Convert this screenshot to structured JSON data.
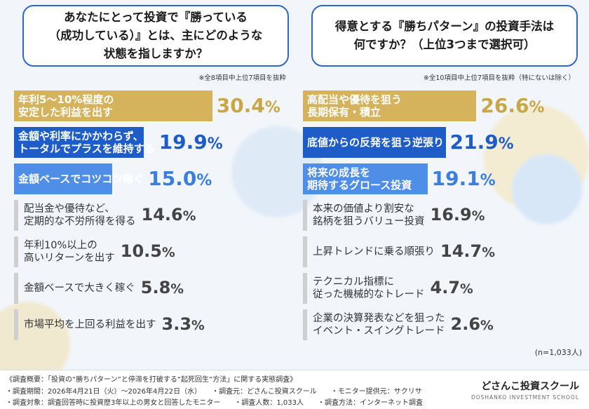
{
  "left": {
    "question": "あなたにとって投資で『勝っている\n（成功している）』とは、主にどのような\n状態を指しますか？",
    "note": "※全8項目中上位7項目を抜粋"
  },
  "right": {
    "question": "得意とする『勝ちパターン』の投資手法は\n何ですか？（上位3つまで選択可）",
    "note": "※全10項目中上位7項目を抜粋（特にないは除く）"
  },
  "chart_data": [
    {
      "type": "bar",
      "orientation": "horizontal",
      "unit": "%",
      "categories": [
        "年利5〜10%程度の\n安定した利益を出す",
        "金額や利率にかかわらず、\nトータルでプラスを維持する",
        "金額ベースでコツコツ稼ぐ",
        "配当金や優待など、\n定期的な不労所得を得る",
        "年利10%以上の\n高いリターンを出す",
        "金額ベースで大きく稼ぐ",
        "市場平均を上回る利益を出す"
      ],
      "values": [
        30.4,
        19.9,
        15.0,
        14.6,
        10.5,
        5.8,
        3.3
      ],
      "value_labels": [
        "30.4",
        "19.9",
        "15.0",
        "14.6",
        "10.5",
        "5.8",
        "3.3"
      ],
      "colors": [
        "#d4b35c",
        "#1e5cc8",
        "#4f8ee6",
        "#cfcfcf",
        "#cfcfcf",
        "#cfcfcf",
        "#cfcfcf"
      ],
      "value_colors": [
        "#c9a648",
        "#1e5cc8",
        "#3a7fe0",
        "#444444",
        "#444444",
        "#444444",
        "#444444"
      ]
    },
    {
      "type": "bar",
      "orientation": "horizontal",
      "unit": "%",
      "categories": [
        "高配当や優待を狙う\n長期保有・積立",
        "底値からの反発を狙う逆張り",
        "将来の成長を\n期待するグロース投資",
        "本来の価値より割安な\n銘柄を狙うバリュー投資",
        "上昇トレンドに乗る順張り",
        "テクニカル指標に\n従った機械的なトレード",
        "企業の決算発表などを狙った\nイベント・スイングトレード"
      ],
      "values": [
        26.6,
        21.9,
        19.1,
        16.9,
        14.7,
        4.7,
        2.6
      ],
      "value_labels": [
        "26.6",
        "21.9",
        "19.1",
        "16.9",
        "14.7",
        "4.7",
        "2.6"
      ],
      "colors": [
        "#d4b35c",
        "#1e5cc8",
        "#4f8ee6",
        "#cfcfcf",
        "#cfcfcf",
        "#cfcfcf",
        "#cfcfcf"
      ],
      "value_colors": [
        "#c9a648",
        "#1e5cc8",
        "#3a7fe0",
        "#444444",
        "#444444",
        "#444444",
        "#444444"
      ]
    }
  ],
  "sample_note": "(n=1,033人)",
  "footer": {
    "line1": "《調査概要：「投資の“勝ちパターン”と停滞を打破する“起死回生”方法」に関する実態調査》",
    "line2": "・調査期間：2026年4月21日（火）〜2026年4月22日（水）　　・調査元：どさんこ投資スクール　　・モニター提供元：サクリサ",
    "line3": "・調査対象：調査回答時に投資歴3年以上の男女と回答したモニター　　・調査人数：1,033人　　・調査方法：インターネット調査",
    "logo_jp": "どさんこ投資スクール",
    "logo_en": "DOSHANKO INVESTMENT SCHOOL"
  }
}
